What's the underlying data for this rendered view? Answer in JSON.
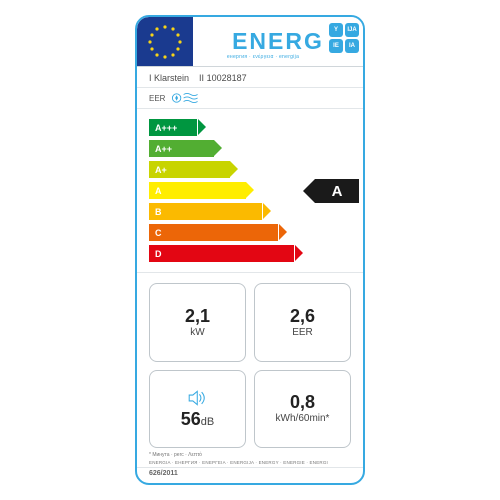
{
  "style": {
    "border_color": "#36a9e1",
    "eu_blue": "#1a3a8f",
    "star_color": "#f7d417"
  },
  "header": {
    "energ_text": "ENERG",
    "energ_sub": "енергия · ενέργεια · energija",
    "lang": [
      "Y",
      "IJA",
      "IE",
      "IA"
    ]
  },
  "supplier": {
    "prefix_brand": "I",
    "brand": "Klarstein",
    "prefix_model": "II",
    "model": "10028187"
  },
  "eer_label": "EER",
  "bars": {
    "classes": [
      {
        "label": "A+++",
        "color": "#009640",
        "width_pct": 24
      },
      {
        "label": "A++",
        "color": "#52ae32",
        "width_pct": 32
      },
      {
        "label": "A+",
        "color": "#c8d400",
        "width_pct": 40
      },
      {
        "label": "A",
        "color": "#ffed00",
        "width_pct": 48
      },
      {
        "label": "B",
        "color": "#fbba00",
        "width_pct": 56
      },
      {
        "label": "C",
        "color": "#ec6608",
        "width_pct": 64
      },
      {
        "label": "D",
        "color": "#e30613",
        "width_pct": 72
      }
    ],
    "rating": "A",
    "rating_index": 3
  },
  "boxes": {
    "power": {
      "value": "2,1",
      "unit": "kW"
    },
    "eer": {
      "value": "2,6",
      "unit": "EER"
    },
    "sound": {
      "value": "56",
      "unit": "dB"
    },
    "energy": {
      "value": "0,8",
      "unit": "kWh/60min*"
    }
  },
  "footnote": "* Минута · perc · Λεπτό",
  "footer_bar": "ENERGIA · ЕНЕРГИЯ · ΕΝΕΡΓΕΙΑ · ENERGIJA · ENERGY · ENERGIE · ENERGI",
  "regulation": "626/2011"
}
